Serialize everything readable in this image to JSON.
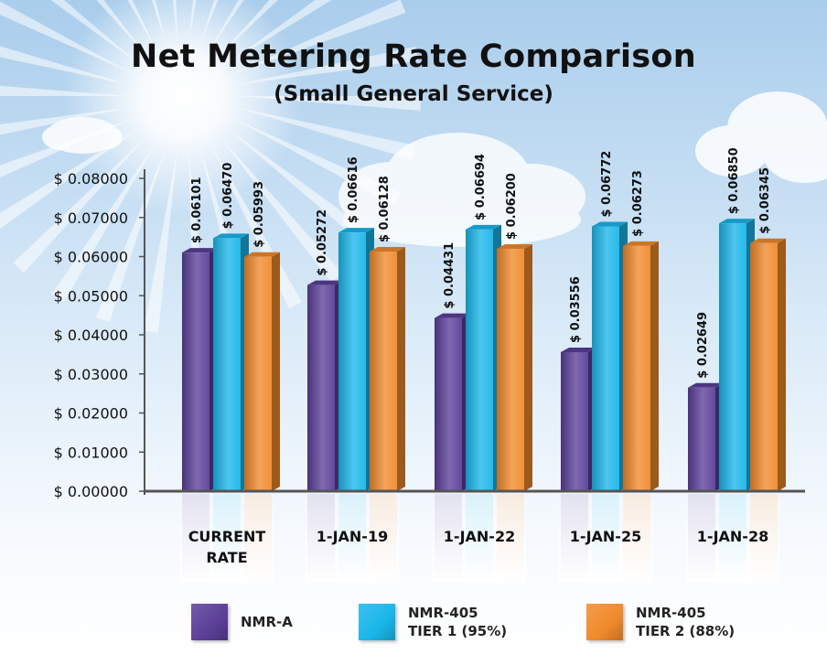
{
  "chart_data": {
    "type": "bar",
    "title": "Net Metering Rate Comparison",
    "subtitle": "(Small General Service)",
    "categories": [
      "CURRENT\nRATE",
      "1-JAN-19",
      "1-JAN-22",
      "1-JAN-25",
      "1-JAN-28"
    ],
    "series": [
      {
        "name": "NMR-A",
        "color": "#5b3f98",
        "values": [
          0.06101,
          0.05272,
          0.04431,
          0.03556,
          0.02649
        ],
        "labels": [
          "$ 0.06101",
          "$ 0.05272",
          "$ 0.04431",
          "$ 0.03556",
          "$ 0.02649"
        ]
      },
      {
        "name": "NMR-405\nTIER 1  (95%)",
        "color": "#1ab6ea",
        "values": [
          0.0647,
          0.06616,
          0.06694,
          0.06772,
          0.0685
        ],
        "labels": [
          "$ 0.06470",
          "$ 0.06616",
          "$ 0.06694",
          "$ 0.06772",
          "$ 0.06850"
        ]
      },
      {
        "name": "NMR-405\nTIER 2  (88%)",
        "color": "#f08a2c",
        "values": [
          0.05993,
          0.06128,
          0.062,
          0.06273,
          0.06345
        ],
        "labels": [
          "$ 0.05993",
          "$ 0.06128",
          "$ 0.06200",
          "$ 0.06273",
          "$ 0.06345"
        ]
      }
    ],
    "yticks": [
      "$ 0.00000",
      "$ 0.01000",
      "$ 0.02000",
      "$ 0.03000",
      "$ 0.04000",
      "$ 0.05000",
      "$ 0.06000",
      "$ 0.07000",
      "$ 0.08000"
    ],
    "ylim": [
      0,
      0.08
    ],
    "xlabel": "",
    "ylabel": "",
    "grid": false,
    "legend": "bottom"
  }
}
